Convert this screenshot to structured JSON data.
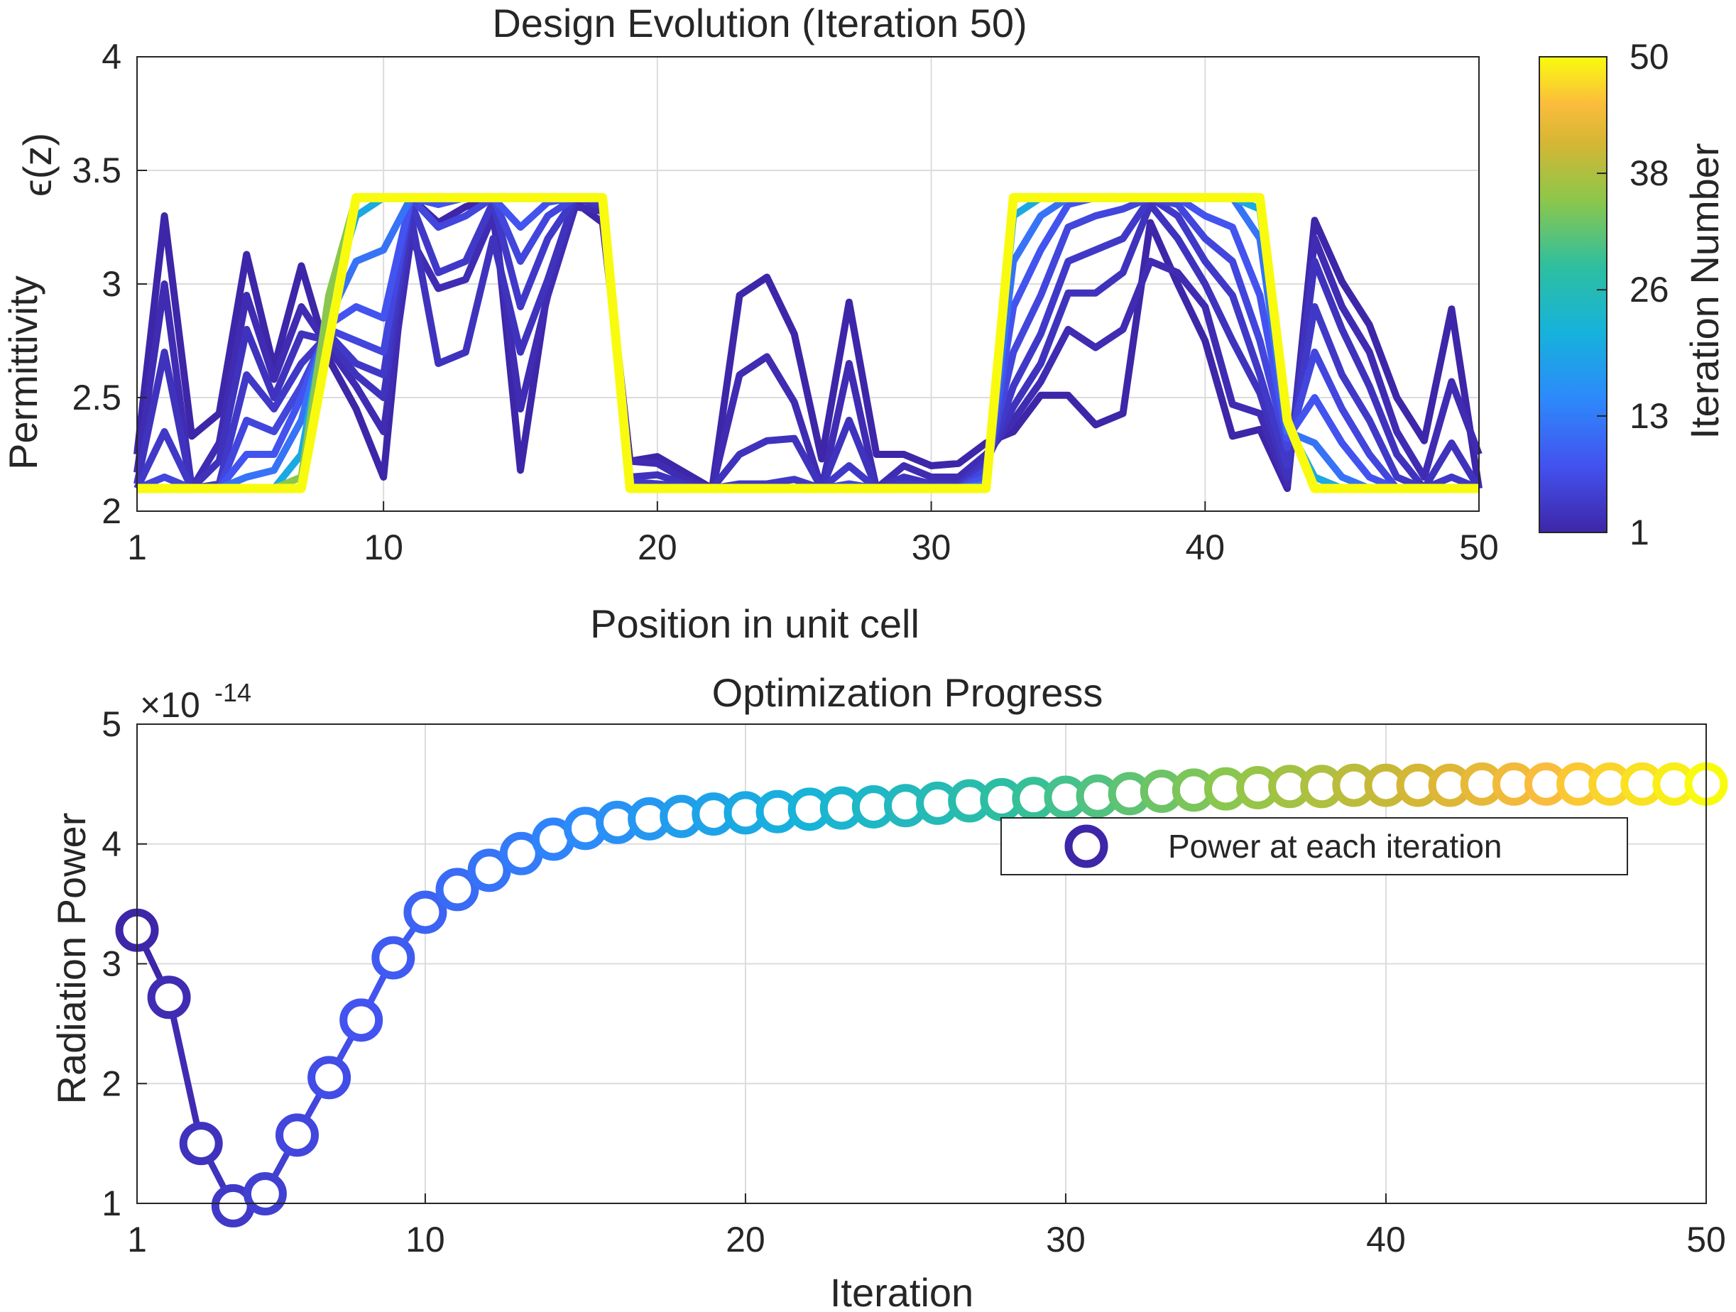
{
  "chart_data": [
    {
      "type": "line",
      "title": "Design Evolution (Iteration 50)",
      "xlabel": "Position in unit cell",
      "ylabel_line1": "ϵ(z)",
      "ylabel_line2": "Permittivity",
      "xlim": [
        1,
        50
      ],
      "ylim": [
        2,
        4
      ],
      "xticks": [
        1,
        10,
        20,
        30,
        40,
        50
      ],
      "yticks": [
        2,
        2.5,
        3,
        3.5,
        4
      ],
      "ytick_labels": [
        "2",
        "2.5",
        "3",
        "3.5",
        "4"
      ],
      "grid": true,
      "colorbar": {
        "label": "Iteration Number",
        "colormap": "parula",
        "range": [
          1,
          50
        ],
        "ticks": [
          1,
          13,
          26,
          38,
          50
        ]
      },
      "x": [
        1,
        2,
        3,
        4,
        5,
        6,
        7,
        8,
        9,
        10,
        11,
        12,
        13,
        14,
        15,
        16,
        17,
        18,
        19,
        20,
        21,
        22,
        23,
        24,
        25,
        26,
        27,
        28,
        29,
        30,
        31,
        32,
        33,
        34,
        35,
        36,
        37,
        38,
        39,
        40,
        41,
        42,
        43,
        44,
        45,
        46,
        47,
        48,
        49,
        50
      ],
      "series": [
        {
          "iteration": 1,
          "values": [
            2.25,
            3.3,
            2.33,
            2.43,
            3.13,
            2.63,
            3.08,
            2.67,
            2.45,
            2.15,
            3.38,
            3.27,
            3.34,
            3.38,
            2.18,
            2.98,
            3.36,
            3.27,
            2.22,
            2.24,
            2.17,
            2.1,
            2.95,
            3.03,
            2.78,
            2.23,
            2.92,
            2.25,
            2.25,
            2.2,
            2.21,
            2.3,
            2.35,
            2.51,
            2.51,
            2.38,
            2.43,
            3.27,
            3.0,
            2.75,
            2.33,
            2.36,
            2.1,
            3.28,
            3.01,
            2.82,
            2.5,
            2.31,
            2.89,
            2.1
          ]
        },
        {
          "iteration": 2,
          "values": [
            2.17,
            3.0,
            2.1,
            2.3,
            2.95,
            2.58,
            2.9,
            2.72,
            2.55,
            2.35,
            3.2,
            2.98,
            3.02,
            3.3,
            2.45,
            2.95,
            3.34,
            3.32,
            2.22,
            2.21,
            2.14,
            2.1,
            2.6,
            2.68,
            2.48,
            2.1,
            2.65,
            2.1,
            2.2,
            2.15,
            2.15,
            2.25,
            2.4,
            2.57,
            2.8,
            2.72,
            2.8,
            3.1,
            3.05,
            2.9,
            2.47,
            2.43,
            2.12,
            3.2,
            2.9,
            2.7,
            2.35,
            2.15,
            2.57,
            2.25
          ]
        },
        {
          "iteration": 3,
          "values": [
            2.12,
            2.7,
            2.1,
            2.22,
            2.8,
            2.5,
            2.78,
            2.75,
            2.6,
            2.5,
            3.3,
            2.65,
            2.7,
            3.2,
            2.7,
            3.02,
            3.38,
            3.34,
            2.15,
            2.16,
            2.12,
            2.1,
            2.25,
            2.31,
            2.32,
            2.1,
            2.4,
            2.1,
            2.15,
            2.12,
            2.12,
            2.22,
            2.46,
            2.65,
            2.96,
            2.96,
            3.05,
            3.35,
            3.2,
            3.0,
            2.75,
            2.52,
            2.15,
            3.1,
            2.8,
            2.55,
            2.25,
            2.1,
            2.3,
            2.1
          ]
        },
        {
          "iteration": 4,
          "values": [
            2.1,
            2.35,
            2.1,
            2.12,
            2.6,
            2.45,
            2.65,
            2.78,
            2.65,
            2.6,
            3.36,
            3.05,
            3.1,
            3.36,
            2.9,
            3.2,
            3.38,
            3.36,
            2.13,
            2.12,
            2.11,
            2.1,
            2.12,
            2.12,
            2.14,
            2.1,
            2.2,
            2.1,
            2.12,
            2.11,
            2.11,
            2.2,
            2.55,
            2.78,
            3.1,
            3.15,
            3.2,
            3.38,
            3.3,
            3.1,
            2.95,
            2.6,
            2.2,
            2.9,
            2.6,
            2.4,
            2.15,
            2.1,
            2.15,
            2.1
          ]
        },
        {
          "iteration": 6,
          "values": [
            2.1,
            2.15,
            2.1,
            2.1,
            2.4,
            2.35,
            2.55,
            2.8,
            2.75,
            2.7,
            3.38,
            3.25,
            3.3,
            3.38,
            3.1,
            3.3,
            3.38,
            3.38,
            2.11,
            2.1,
            2.1,
            2.1,
            2.1,
            2.1,
            2.1,
            2.1,
            2.12,
            2.1,
            2.1,
            2.1,
            2.1,
            2.18,
            2.7,
            2.95,
            3.25,
            3.3,
            3.33,
            3.38,
            3.35,
            3.2,
            3.1,
            2.75,
            2.28,
            2.7,
            2.45,
            2.25,
            2.1,
            2.1,
            2.1,
            2.1
          ]
        },
        {
          "iteration": 8,
          "values": [
            2.1,
            2.1,
            2.1,
            2.1,
            2.25,
            2.25,
            2.5,
            2.82,
            2.9,
            2.85,
            3.38,
            3.35,
            3.38,
            3.38,
            3.25,
            3.36,
            3.38,
            3.38,
            2.1,
            2.1,
            2.1,
            2.1,
            2.1,
            2.1,
            2.1,
            2.1,
            2.1,
            2.1,
            2.1,
            2.1,
            2.1,
            2.15,
            2.9,
            3.15,
            3.35,
            3.38,
            3.38,
            3.38,
            3.38,
            3.3,
            3.25,
            2.95,
            2.32,
            2.5,
            2.3,
            2.15,
            2.1,
            2.1,
            2.1,
            2.1
          ]
        },
        {
          "iteration": 12,
          "values": [
            2.1,
            2.1,
            2.1,
            2.1,
            2.15,
            2.18,
            2.4,
            2.85,
            3.1,
            3.15,
            3.38,
            3.38,
            3.38,
            3.38,
            3.38,
            3.38,
            3.38,
            3.38,
            2.1,
            2.1,
            2.1,
            2.1,
            2.1,
            2.1,
            2.1,
            2.1,
            2.1,
            2.1,
            2.1,
            2.1,
            2.1,
            2.12,
            3.1,
            3.3,
            3.38,
            3.38,
            3.38,
            3.38,
            3.38,
            3.38,
            3.38,
            3.2,
            2.35,
            2.3,
            2.15,
            2.1,
            2.1,
            2.1,
            2.1,
            2.1
          ]
        },
        {
          "iteration": 20,
          "values": [
            2.1,
            2.1,
            2.1,
            2.1,
            2.1,
            2.1,
            2.25,
            2.9,
            3.3,
            3.38,
            3.38,
            3.38,
            3.38,
            3.38,
            3.38,
            3.38,
            3.38,
            3.38,
            2.1,
            2.1,
            2.1,
            2.1,
            2.1,
            2.1,
            2.1,
            2.1,
            2.1,
            2.1,
            2.1,
            2.1,
            2.1,
            2.1,
            3.3,
            3.38,
            3.38,
            3.38,
            3.38,
            3.38,
            3.38,
            3.38,
            3.38,
            3.33,
            2.38,
            2.15,
            2.1,
            2.1,
            2.1,
            2.1,
            2.1,
            2.1
          ]
        },
        {
          "iteration": 35,
          "values": [
            2.1,
            2.1,
            2.1,
            2.1,
            2.1,
            2.1,
            2.15,
            2.95,
            3.38,
            3.38,
            3.38,
            3.38,
            3.38,
            3.38,
            3.38,
            3.38,
            3.38,
            3.38,
            2.1,
            2.1,
            2.1,
            2.1,
            2.1,
            2.1,
            2.1,
            2.1,
            2.1,
            2.1,
            2.1,
            2.1,
            2.1,
            2.1,
            3.38,
            3.38,
            3.38,
            3.38,
            3.38,
            3.38,
            3.38,
            3.38,
            3.38,
            3.38,
            2.4,
            2.1,
            2.1,
            2.1,
            2.1,
            2.1,
            2.1,
            2.1
          ]
        },
        {
          "iteration": 50,
          "values": [
            2.1,
            2.1,
            2.1,
            2.1,
            2.1,
            2.1,
            2.1,
            2.75,
            3.38,
            3.38,
            3.38,
            3.38,
            3.38,
            3.38,
            3.38,
            3.38,
            3.38,
            3.38,
            2.1,
            2.1,
            2.1,
            2.1,
            2.1,
            2.1,
            2.1,
            2.1,
            2.1,
            2.1,
            2.1,
            2.1,
            2.1,
            2.1,
            3.38,
            3.38,
            3.38,
            3.38,
            3.38,
            3.38,
            3.38,
            3.38,
            3.38,
            3.38,
            2.4,
            2.1,
            2.1,
            2.1,
            2.1,
            2.1,
            2.1,
            2.1
          ]
        }
      ]
    },
    {
      "type": "line",
      "title": "Optimization Progress",
      "xlabel": "Iteration",
      "ylabel": "Radiation Power",
      "y_exponent_base": "×10",
      "y_exponent_power": "-14",
      "xlim": [
        1,
        50
      ],
      "ylim": [
        1,
        5
      ],
      "xticks": [
        1,
        10,
        20,
        30,
        40,
        50
      ],
      "yticks": [
        1,
        2,
        3,
        4,
        5
      ],
      "grid": true,
      "legend": {
        "label": "Power at each iteration",
        "position": "upper right"
      },
      "x": [
        1,
        2,
        3,
        4,
        5,
        6,
        7,
        8,
        9,
        10,
        11,
        12,
        13,
        14,
        15,
        16,
        17,
        18,
        19,
        20,
        21,
        22,
        23,
        24,
        25,
        26,
        27,
        28,
        29,
        30,
        31,
        32,
        33,
        34,
        35,
        36,
        37,
        38,
        39,
        40,
        41,
        42,
        43,
        44,
        45,
        46,
        47,
        48,
        49,
        50
      ],
      "y": [
        3.28,
        2.72,
        1.5,
        0.98,
        1.08,
        1.57,
        2.05,
        2.53,
        3.05,
        3.43,
        3.62,
        3.78,
        3.92,
        4.04,
        4.13,
        4.18,
        4.21,
        4.23,
        4.25,
        4.26,
        4.27,
        4.29,
        4.3,
        4.31,
        4.32,
        4.34,
        4.36,
        4.37,
        4.38,
        4.39,
        4.4,
        4.42,
        4.44,
        4.45,
        4.46,
        4.47,
        4.48,
        4.48,
        4.49,
        4.49,
        4.49,
        4.49,
        4.5,
        4.5,
        4.5,
        4.5,
        4.5,
        4.5,
        4.5,
        4.5
      ]
    }
  ]
}
